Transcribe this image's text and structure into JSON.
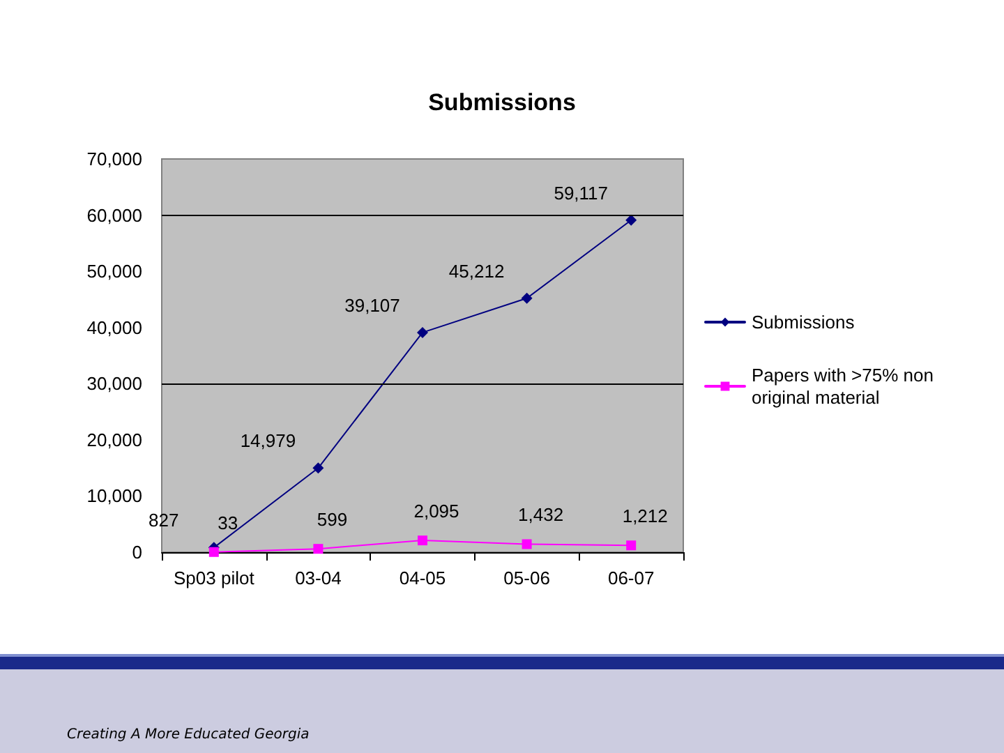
{
  "chart_data": {
    "type": "line",
    "title": "Submissions",
    "categories": [
      "Sp03 pilot",
      "03-04",
      "04-05",
      "05-06",
      "06-07"
    ],
    "series": [
      {
        "name": "Submissions",
        "color": "#000080",
        "marker": "diamond",
        "values": [
          827,
          14979,
          39107,
          45212,
          59117
        ],
        "value_labels": [
          "827",
          "14,979",
          "39,107",
          "45,212",
          "59,117"
        ]
      },
      {
        "name": "Papers with >75% non original material",
        "color": "#ff00ff",
        "marker": "square",
        "values": [
          33,
          599,
          2095,
          1432,
          1212
        ],
        "value_labels": [
          "33",
          "599",
          "2,095",
          "1,432",
          "1,212"
        ]
      }
    ],
    "ylim": [
      0,
      70000
    ],
    "yticks": [
      0,
      {
        "value": 10000,
        "label": "10,000"
      },
      {
        "value": 20000,
        "label": "20,000"
      },
      {
        "value": 30000,
        "label": "30,000"
      },
      {
        "value": 40000,
        "label": "40,000"
      },
      {
        "value": 50000,
        "label": "50,000"
      },
      {
        "value": 60000,
        "label": "60,000"
      },
      {
        "value": 70000,
        "label": "70,000"
      }
    ],
    "ref_lines": [
      {
        "axis": "y",
        "value": 30000,
        "color": "#000000"
      },
      {
        "axis": "y",
        "value": 60000,
        "color": "#000000"
      }
    ],
    "grid": false,
    "legend": "right",
    "line_style": "solid",
    "annotations": [
      "Creating A More Educated Georgia"
    ]
  }
}
